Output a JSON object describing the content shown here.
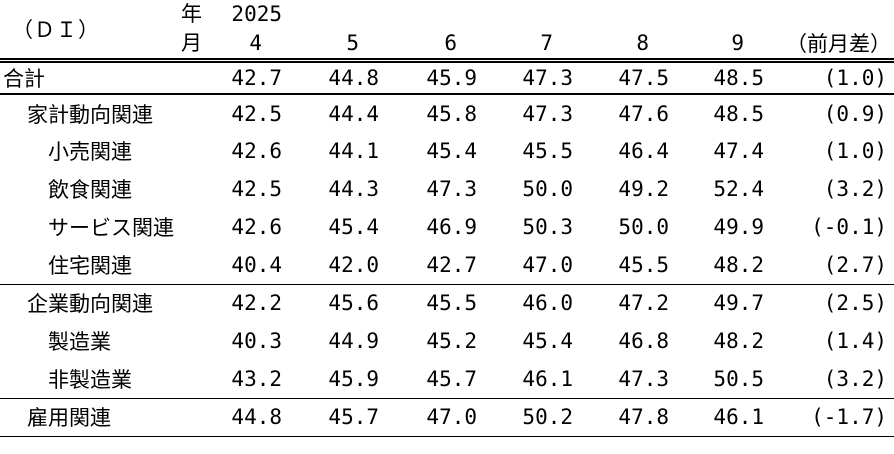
{
  "table": {
    "corner_label": "（ＤＩ）",
    "year_label": "年",
    "year_value": "2025",
    "month_label": "月",
    "months": [
      "4",
      "5",
      "6",
      "7",
      "8",
      "9"
    ],
    "diff_header": "（前月差）",
    "rows": [
      {
        "label": "合計",
        "indent": 0,
        "values": [
          "42.7",
          "44.8",
          "45.9",
          "47.3",
          "47.5",
          "48.5"
        ],
        "diff": "(1.0)"
      },
      {
        "label": "家計動向関連",
        "indent": 1,
        "values": [
          "42.5",
          "44.4",
          "45.8",
          "47.3",
          "47.6",
          "48.5"
        ],
        "diff": "(0.9)"
      },
      {
        "label": "小売関連",
        "indent": 2,
        "values": [
          "42.6",
          "44.1",
          "45.4",
          "45.5",
          "46.4",
          "47.4"
        ],
        "diff": "(1.0)"
      },
      {
        "label": "飲食関連",
        "indent": 2,
        "values": [
          "42.5",
          "44.3",
          "47.3",
          "50.0",
          "49.2",
          "52.4"
        ],
        "diff": "(3.2)"
      },
      {
        "label": "サービス関連",
        "indent": 2,
        "values": [
          "42.6",
          "45.4",
          "46.9",
          "50.3",
          "50.0",
          "49.9"
        ],
        "diff": "(-0.1)"
      },
      {
        "label": "住宅関連",
        "indent": 2,
        "values": [
          "40.4",
          "42.0",
          "42.7",
          "47.0",
          "45.5",
          "48.2"
        ],
        "diff": "(2.7)"
      },
      {
        "label": "企業動向関連",
        "indent": 1,
        "values": [
          "42.2",
          "45.6",
          "45.5",
          "46.0",
          "47.2",
          "49.7"
        ],
        "diff": "(2.5)"
      },
      {
        "label": "製造業",
        "indent": 2,
        "values": [
          "40.3",
          "44.9",
          "45.2",
          "45.4",
          "46.8",
          "48.2"
        ],
        "diff": "(1.4)"
      },
      {
        "label": "非製造業",
        "indent": 2,
        "values": [
          "43.2",
          "45.9",
          "45.7",
          "46.1",
          "47.3",
          "50.5"
        ],
        "diff": "(3.2)"
      },
      {
        "label": "雇用関連",
        "indent": 1,
        "values": [
          "44.8",
          "45.7",
          "47.0",
          "50.2",
          "47.8",
          "46.1"
        ],
        "diff": "(-1.7)"
      }
    ]
  },
  "colors": {
    "text": "#000000",
    "background": "#ffffff",
    "rule": "#000000"
  }
}
